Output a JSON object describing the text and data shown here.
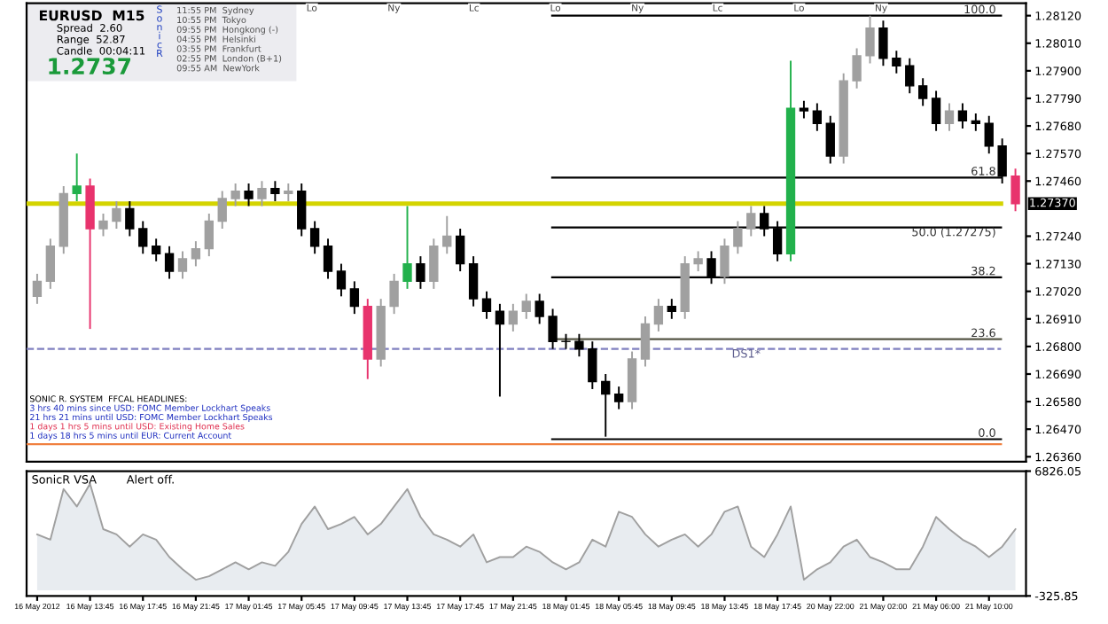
{
  "chart_data": [
    {
      "type": "candlestick",
      "title": "EURUSD  M15",
      "ohlc": [
        [
          1.27,
          1.2709,
          1.2697,
          1.2706
        ],
        [
          1.2706,
          1.2723,
          1.2703,
          1.272
        ],
        [
          1.272,
          1.2744,
          1.2717,
          1.2741
        ],
        [
          1.2741,
          1.2757,
          1.2738,
          1.2744
        ],
        [
          1.2744,
          1.2747,
          1.2687,
          1.2727
        ],
        [
          1.2727,
          1.2733,
          1.2724,
          1.273
        ],
        [
          1.273,
          1.2738,
          1.2727,
          1.2735
        ],
        [
          1.2735,
          1.2738,
          1.2724,
          1.2727
        ],
        [
          1.2727,
          1.273,
          1.2717,
          1.272
        ],
        [
          1.272,
          1.2723,
          1.2714,
          1.2717
        ],
        [
          1.2717,
          1.272,
          1.2707,
          1.271
        ],
        [
          1.271,
          1.2718,
          1.2707,
          1.2715
        ],
        [
          1.2715,
          1.2722,
          1.2712,
          1.2719
        ],
        [
          1.2719,
          1.2733,
          1.2716,
          1.273
        ],
        [
          1.273,
          1.2742,
          1.2727,
          1.2739
        ],
        [
          1.2739,
          1.2745,
          1.2736,
          1.2742
        ],
        [
          1.2742,
          1.2745,
          1.2736,
          1.2739
        ],
        [
          1.2739,
          1.2746,
          1.2736,
          1.2743
        ],
        [
          1.2743,
          1.2746,
          1.2738,
          1.2741
        ],
        [
          1.2741,
          1.2745,
          1.2738,
          1.2742
        ],
        [
          1.2742,
          1.2745,
          1.2724,
          1.2727
        ],
        [
          1.2727,
          1.273,
          1.2717,
          1.272
        ],
        [
          1.272,
          1.2723,
          1.2707,
          1.271
        ],
        [
          1.271,
          1.2713,
          1.27,
          1.2703
        ],
        [
          1.2703,
          1.2706,
          1.2693,
          1.2696
        ],
        [
          1.2696,
          1.2699,
          1.2667,
          1.2675
        ],
        [
          1.2675,
          1.2699,
          1.2672,
          1.2696
        ],
        [
          1.2696,
          1.2709,
          1.2693,
          1.2706
        ],
        [
          1.2706,
          1.2736,
          1.2703,
          1.2713
        ],
        [
          1.2713,
          1.2716,
          1.2703,
          1.2706
        ],
        [
          1.2706,
          1.2723,
          1.2703,
          1.272
        ],
        [
          1.272,
          1.2732,
          1.2717,
          1.2724
        ],
        [
          1.2724,
          1.2727,
          1.271,
          1.2713
        ],
        [
          1.2713,
          1.2716,
          1.2696,
          1.2699
        ],
        [
          1.2699,
          1.2702,
          1.2691,
          1.2694
        ],
        [
          1.2694,
          1.2697,
          1.266,
          1.2689
        ],
        [
          1.2689,
          1.2697,
          1.2686,
          1.2694
        ],
        [
          1.2694,
          1.2701,
          1.2691,
          1.2698
        ],
        [
          1.2698,
          1.2701,
          1.2689,
          1.2692
        ],
        [
          1.2692,
          1.2695,
          1.2679,
          1.2682
        ],
        [
          1.2682,
          1.2685,
          1.2679,
          1.2682
        ],
        [
          1.2682,
          1.2685,
          1.2676,
          1.2679
        ],
        [
          1.2679,
          1.2682,
          1.2663,
          1.2666
        ],
        [
          1.2666,
          1.2669,
          1.2644,
          1.2661
        ],
        [
          1.2661,
          1.2664,
          1.2655,
          1.2658
        ],
        [
          1.2658,
          1.2678,
          1.2655,
          1.2675
        ],
        [
          1.2675,
          1.2692,
          1.2672,
          1.2689
        ],
        [
          1.2689,
          1.2699,
          1.2686,
          1.2696
        ],
        [
          1.2696,
          1.2699,
          1.2691,
          1.2694
        ],
        [
          1.2694,
          1.2716,
          1.2691,
          1.2713
        ],
        [
          1.2713,
          1.2718,
          1.271,
          1.2715
        ],
        [
          1.2715,
          1.2718,
          1.2705,
          1.2708
        ],
        [
          1.2708,
          1.2723,
          1.2705,
          1.272
        ],
        [
          1.272,
          1.273,
          1.2717,
          1.2727
        ],
        [
          1.2727,
          1.2736,
          1.2724,
          1.2733
        ],
        [
          1.2733,
          1.2736,
          1.2724,
          1.2727
        ],
        [
          1.2727,
          1.273,
          1.2714,
          1.2717
        ],
        [
          1.2717,
          1.2794,
          1.2714,
          1.2775
        ],
        [
          1.2775,
          1.2778,
          1.2771,
          1.2774
        ],
        [
          1.2774,
          1.2777,
          1.2766,
          1.2769
        ],
        [
          1.2769,
          1.2772,
          1.2753,
          1.2756
        ],
        [
          1.2756,
          1.2789,
          1.2753,
          1.2786
        ],
        [
          1.2786,
          1.2799,
          1.2783,
          1.2796
        ],
        [
          1.2796,
          1.2812,
          1.2793,
          1.2807
        ],
        [
          1.2807,
          1.281,
          1.2792,
          1.2795
        ],
        [
          1.2795,
          1.2798,
          1.2789,
          1.2792
        ],
        [
          1.2792,
          1.2795,
          1.2781,
          1.2784
        ],
        [
          1.2784,
          1.2787,
          1.2776,
          1.2779
        ],
        [
          1.2779,
          1.2782,
          1.2766,
          1.2769
        ],
        [
          1.2769,
          1.2777,
          1.2766,
          1.2774
        ],
        [
          1.2774,
          1.2777,
          1.2767,
          1.277
        ],
        [
          1.277,
          1.2773,
          1.2766,
          1.2769
        ],
        [
          1.2769,
          1.2772,
          1.2757,
          1.276
        ],
        [
          1.276,
          1.2763,
          1.2745,
          1.2748
        ],
        [
          1.2748,
          1.2751,
          1.2734,
          1.2737
        ]
      ],
      "colors": [
        "#a0a0a0",
        "#a0a0a0",
        "#a0a0a0",
        "#22b14c",
        "#e8336d",
        "#a0a0a0",
        "#a0a0a0",
        "#000000",
        "#000000",
        "#000000",
        "#000000",
        "#a0a0a0",
        "#a0a0a0",
        "#a0a0a0",
        "#a0a0a0",
        "#a0a0a0",
        "#000000",
        "#a0a0a0",
        "#000000",
        "#a0a0a0",
        "#000000",
        "#000000",
        "#000000",
        "#000000",
        "#000000",
        "#e8336d",
        "#a0a0a0",
        "#a0a0a0",
        "#22b14c",
        "#000000",
        "#a0a0a0",
        "#a0a0a0",
        "#000000",
        "#000000",
        "#000000",
        "#000000",
        "#a0a0a0",
        "#a0a0a0",
        "#000000",
        "#000000",
        "#000000",
        "#000000",
        "#000000",
        "#000000",
        "#000000",
        "#a0a0a0",
        "#a0a0a0",
        "#a0a0a0",
        "#000000",
        "#a0a0a0",
        "#a0a0a0",
        "#000000",
        "#a0a0a0",
        "#a0a0a0",
        "#a0a0a0",
        "#000000",
        "#000000",
        "#22b14c",
        "#000000",
        "#000000",
        "#000000",
        "#a0a0a0",
        "#a0a0a0",
        "#a0a0a0",
        "#000000",
        "#000000",
        "#000000",
        "#000000",
        "#000000",
        "#a0a0a0",
        "#000000",
        "#000000",
        "#000000",
        "#000000",
        "#e8336d"
      ],
      "ylim": [
        1.2634,
        1.2817
      ],
      "yticks": [
        {
          "value": 1.2812,
          "label": "1.28120"
        },
        {
          "value": 1.2801,
          "label": "1.28010"
        },
        {
          "value": 1.279,
          "label": "1.27900"
        },
        {
          "value": 1.2779,
          "label": "1.27790"
        },
        {
          "value": 1.2768,
          "label": "1.27680"
        },
        {
          "value": 1.2757,
          "label": "1.27570"
        },
        {
          "value": 1.2746,
          "label": "1.27460"
        },
        {
          "value": 1.2724,
          "label": "1.27240"
        },
        {
          "value": 1.2713,
          "label": "1.27130"
        },
        {
          "value": 1.2702,
          "label": "1.27020"
        },
        {
          "value": 1.2691,
          "label": "1.26910"
        },
        {
          "value": 1.268,
          "label": "1.26800"
        },
        {
          "value": 1.2669,
          "label": "1.26690"
        },
        {
          "value": 1.2658,
          "label": "1.26580"
        },
        {
          "value": 1.2647,
          "label": "1.26470"
        },
        {
          "value": 1.2636,
          "label": "1.26360"
        }
      ],
      "ref_lines": [
        {
          "axis": "y",
          "value": 1.2737,
          "label": "1.27370",
          "color": "#d4d400",
          "line_style": "solid"
        },
        {
          "axis": "y",
          "value": 1.2812,
          "color": "#000000",
          "line_style": "solid"
        },
        {
          "axis": "y",
          "value": 1.27474,
          "color": "#000000",
          "line_style": "solid"
        },
        {
          "axis": "y",
          "value": 1.27275,
          "label": "50.0 (1.27275)",
          "color": "#000000",
          "line_style": "solid"
        },
        {
          "axis": "y",
          "value": 1.27076,
          "color": "#000000",
          "line_style": "solid"
        },
        {
          "axis": "y",
          "value": 1.26829,
          "color": "#555544",
          "line_style": "solid"
        },
        {
          "axis": "y",
          "value": 1.2679,
          "label": "DS1*",
          "color": "#8080c0",
          "line_style": "dashed"
        },
        {
          "axis": "y",
          "value": 1.2643,
          "color": "#000000",
          "line_style": "solid"
        },
        {
          "axis": "y",
          "value": 1.2641,
          "color": "#f08040",
          "line_style": "solid"
        }
      ],
      "annotations": [
        "Spread  2.60",
        "Range  52.87",
        "Candle  00:04:11",
        "1.2737",
        "SonicR",
        "11:55 PM  Sydney",
        "10:55 PM  Tokyo",
        "09:55 PM  Hongkong (-)",
        "04:55 PM  Helsinki",
        "03:55 PM  Frankfurt",
        "02:55 PM  London (B+1)",
        "09:55 AM  NewYork",
        "SONIC R. SYSTEM  FFCAL HEADLINES:",
        "3 hrs 40 mins since USD: FOMC Member Lockhart Speaks",
        "21 hrs 21 mins until USD: FOMC Member Lockhart Speaks",
        "1 days 1 hrs 5 mins until USD: Existing Home Sales",
        "1 days 18 hrs 5 mins until EUR: Current Account",
        "Lo",
        "Ny",
        "Lc",
        "Lo",
        "Ny",
        "Lc",
        "Lo",
        "Ny",
        {
          "text": "100.0",
          "y": 1.2812
        },
        {
          "text": "61.8",
          "y": 1.27474
        },
        {
          "text": "38.2",
          "y": 1.27076
        },
        {
          "text": "23.6",
          "y": 1.26829
        },
        {
          "text": "0.0",
          "y": 1.2643
        }
      ],
      "tick_labels": "y"
    },
    {
      "type": "area",
      "title": "SonicR VSA",
      "categories": [
        "16 May 2012",
        null,
        null,
        null,
        "16 May 13:45",
        null,
        null,
        null,
        "16 May 17:45",
        null,
        null,
        null,
        "16 May 21:45",
        null,
        null,
        null,
        "17 May 01:45",
        null,
        null,
        null,
        "17 May 05:45",
        null,
        null,
        null,
        "17 May 09:45",
        null,
        null,
        null,
        "17 May 13:45",
        null,
        null,
        null,
        "17 May 17:45",
        null,
        null,
        null,
        "17 May 21:45",
        null,
        null,
        null,
        "18 May 01:45",
        null,
        null,
        null,
        "18 May 05:45",
        null,
        null,
        null,
        "18 May 09:45",
        null,
        null,
        null,
        "18 May 13:45",
        null,
        null,
        null,
        "18 May 17:45",
        null,
        null,
        null,
        "20 May 22:00",
        null,
        null,
        null,
        "21 May 02:00",
        null,
        null,
        null,
        "21 May 06:00",
        null,
        null,
        null,
        "21 May 10:00",
        null,
        null
      ],
      "values": [
        3200,
        2900,
        5800,
        4800,
        6100,
        3500,
        3200,
        2500,
        3200,
        2900,
        1900,
        1200,
        600,
        800,
        1200,
        1600,
        1200,
        1600,
        1400,
        2200,
        3800,
        4800,
        3500,
        3800,
        4200,
        3200,
        3800,
        4800,
        5800,
        4200,
        3200,
        2900,
        2500,
        3200,
        1600,
        1900,
        1900,
        2500,
        2200,
        1600,
        1200,
        1600,
        2900,
        2500,
        4500,
        4200,
        3200,
        2500,
        2900,
        3200,
        2500,
        3200,
        4500,
        4800,
        2500,
        1900,
        3200,
        4800,
        600,
        1200,
        1600,
        2500,
        2900,
        1900,
        1600,
        1200,
        1200,
        2500,
        4200,
        3500,
        2900,
        2500,
        1900,
        2500,
        3500
      ],
      "color": "#a0a0a0",
      "ylim": [
        -325.85,
        6826.05
      ],
      "yticks": [
        6826.05,
        -325.85
      ],
      "annotations": [
        "Alert off."
      ]
    }
  ]
}
